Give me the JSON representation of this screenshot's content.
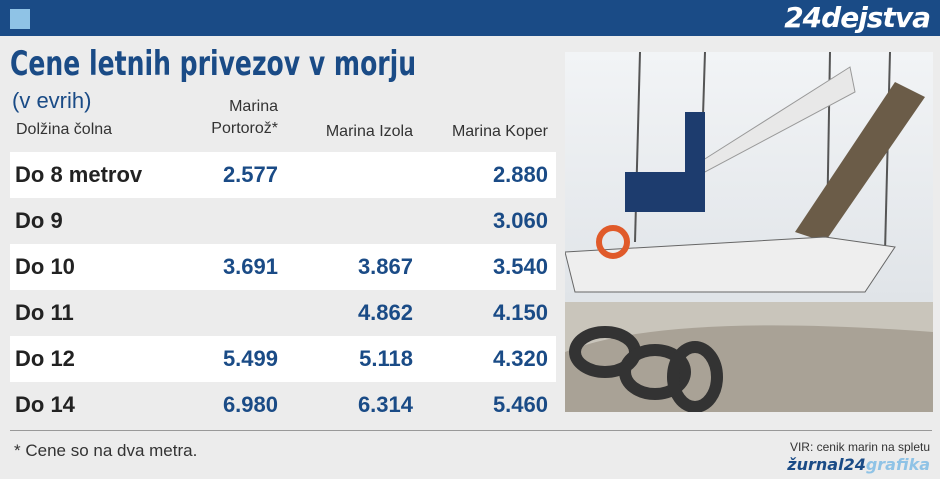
{
  "header": {
    "logo": "24dejstva"
  },
  "title": "Cene letnih privezov v morju",
  "subtitle": "(v evrih)",
  "table": {
    "columns": [
      "Dolžina čolna",
      "Marina Portorož*",
      "Marina Izola",
      "Marina Koper"
    ],
    "rows": [
      [
        "Do 8 metrov",
        "2.577",
        null,
        "2.880"
      ],
      [
        "Do 9",
        null,
        null,
        "3.060"
      ],
      [
        "Do 10",
        "3.691",
        "3.867",
        "3.540"
      ],
      [
        "Do 11",
        null,
        "4.862",
        "4.150"
      ],
      [
        "Do 12",
        "5.499",
        "5.118",
        "4.320"
      ],
      [
        "Do 14",
        "6.980",
        "6.314",
        "5.460"
      ]
    ]
  },
  "footnote": "* Cene so na dva metra.",
  "source": "VIR: cenik marin na spletu",
  "credit": {
    "brand": "žurnal24",
    "suffix": "grafika"
  }
}
